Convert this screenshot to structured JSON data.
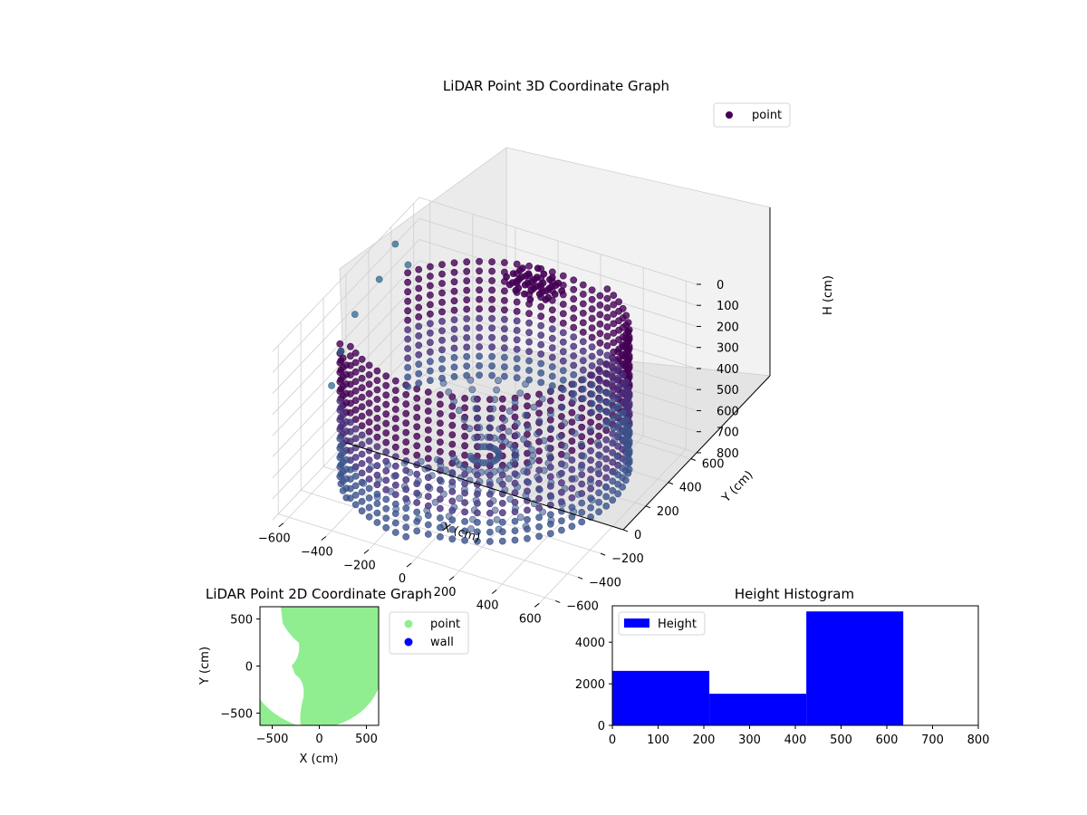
{
  "chart_data": [
    {
      "type": "scatter3d",
      "title": "LiDAR Point 3D Coordinate Graph",
      "xlabel": "X (cm)",
      "ylabel": "Y (cm)",
      "zlabel": "H (cm)",
      "xticks": [
        -600,
        -400,
        -200,
        0,
        200,
        400,
        600
      ],
      "yticks": [
        -600,
        -400,
        -200,
        0,
        200,
        400,
        600
      ],
      "zticks": [
        0,
        100,
        200,
        300,
        400,
        500,
        600,
        700,
        800
      ],
      "xlim": [
        -650,
        650
      ],
      "ylim": [
        -650,
        650
      ],
      "zlim": [
        0,
        800
      ],
      "z_inverted": true,
      "grid": true,
      "legend": {
        "placement": "upper-right",
        "entries": [
          {
            "label": "point",
            "color": "#440154"
          }
        ]
      },
      "shape": "U-shaped wall of points, radius about 600 cm, heights 0-700 cm, open toward -X, with scattered outliers on the -X side",
      "colormap": "viridis"
    },
    {
      "type": "scatter",
      "title": "LiDAR Point 2D Coordinate Graph",
      "xlabel": "X (cm)",
      "ylabel": "Y (cm)",
      "xticks": [
        -500,
        0,
        500
      ],
      "yticks": [
        -500,
        0,
        500
      ],
      "xlim": [
        -630,
        630
      ],
      "ylim": [
        -630,
        630
      ],
      "legend": {
        "placement": "right-outside",
        "entries": [
          {
            "label": "point",
            "color": "#90ee90"
          },
          {
            "label": "wall",
            "color": "#0000ff"
          }
        ]
      }
    },
    {
      "type": "bar",
      "title": "Height Histogram",
      "legend": {
        "placement": "upper-left",
        "entries": [
          {
            "label": "Height",
            "color": "#0000ff"
          }
        ]
      },
      "bins": [
        {
          "start": 0,
          "end": 212,
          "value": 2620
        },
        {
          "start": 212,
          "end": 424,
          "value": 1520
        },
        {
          "start": 424,
          "end": 636,
          "value": 5480
        }
      ],
      "xlim": [
        0,
        800
      ],
      "ylim": [
        0,
        5750
      ],
      "xticks": [
        0,
        100,
        200,
        300,
        400,
        500,
        600,
        700,
        800
      ],
      "yticks": [
        0,
        2000,
        4000
      ],
      "bar_color": "#0000ff"
    }
  ]
}
